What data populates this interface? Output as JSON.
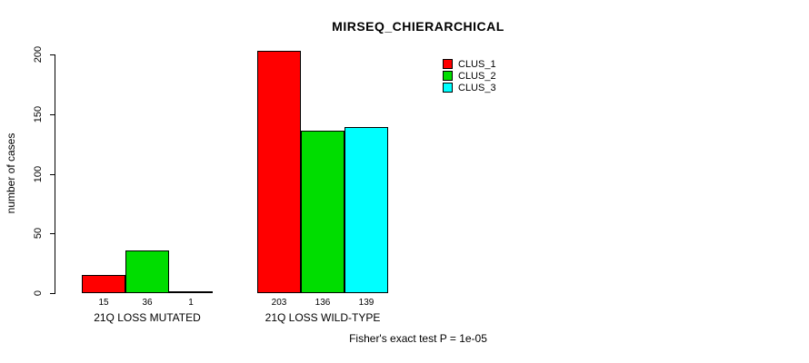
{
  "chart_data": {
    "type": "bar",
    "title": "MIRSEQ_CHIERARCHICAL",
    "xlabel": "",
    "ylabel": "number of cases",
    "categories": [
      "21Q LOSS MUTATED",
      "21Q LOSS WILD-TYPE"
    ],
    "series": [
      {
        "name": "CLUS_1",
        "color": "#FF0000",
        "values": [
          15,
          203
        ]
      },
      {
        "name": "CLUS_2",
        "color": "#00DD00",
        "values": [
          36,
          136
        ]
      },
      {
        "name": "CLUS_3",
        "color": "#00FFFF",
        "values": [
          1,
          139
        ]
      }
    ],
    "yticks": [
      0,
      50,
      100,
      150,
      200
    ],
    "ylim": [
      0,
      210
    ],
    "grid": false,
    "legend_position": "top-right",
    "bar_value_labels": true,
    "annotation": "Fisher's exact test P = 1e-05"
  }
}
